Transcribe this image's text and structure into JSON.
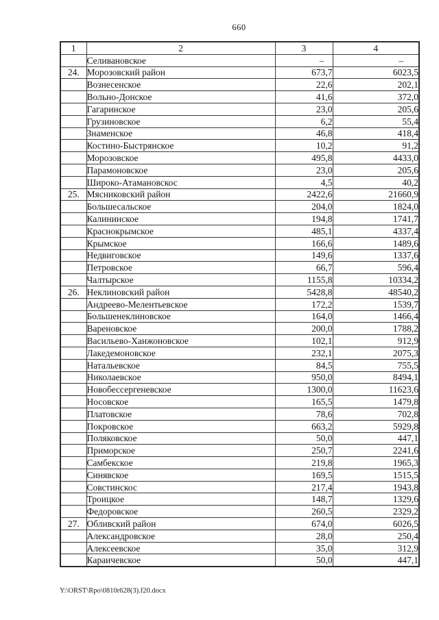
{
  "page": {
    "number": "660",
    "footer_path": "Y:\\ORST\\Rpo\\0810r628(3).f20.docx",
    "text_color": "#161616",
    "border_color": "#3a3a3a",
    "background_color": "#ffffff"
  },
  "table": {
    "headers": [
      "1",
      "2",
      "3",
      "4"
    ],
    "rows": [
      {
        "num": "",
        "name": "Селивановское",
        "v3": "–",
        "v4": "–"
      },
      {
        "num": "24.",
        "name": "Морозовский район",
        "v3": "673,7",
        "v4": "6023,5"
      },
      {
        "num": "",
        "name": "Вознесенское",
        "v3": "22,6",
        "v4": "202,1"
      },
      {
        "num": "",
        "name": "Вольно-Донское",
        "v3": "41,6",
        "v4": "372,0"
      },
      {
        "num": "",
        "name": "Гагаринское",
        "v3": "23,0",
        "v4": "205,6"
      },
      {
        "num": "",
        "name": "Грузиновское",
        "v3": "6,2",
        "v4": "55,4"
      },
      {
        "num": "",
        "name": "Знаменское",
        "v3": "46,8",
        "v4": "418,4"
      },
      {
        "num": "",
        "name": "Костино-Быстрянское",
        "v3": "10,2",
        "v4": "91,2"
      },
      {
        "num": "",
        "name": "Морозовское",
        "v3": "495,8",
        "v4": "4433,0"
      },
      {
        "num": "",
        "name": "Парамоновское",
        "v3": "23,0",
        "v4": "205,6"
      },
      {
        "num": "",
        "name": "Широко-Атамановскос",
        "v3": "4,5",
        "v4": "40,2"
      },
      {
        "num": "25.",
        "name": "Мясниковский район",
        "v3": "2422,6",
        "v4": "21660,9"
      },
      {
        "num": "",
        "name": "Большесальское",
        "v3": "204,0",
        "v4": "1824,0"
      },
      {
        "num": "",
        "name": "Калининское",
        "v3": "194,8",
        "v4": "1741,7"
      },
      {
        "num": "",
        "name": "Краснокрымское",
        "v3": "485,1",
        "v4": "4337,4"
      },
      {
        "num": "",
        "name": "Крымское",
        "v3": "166,6",
        "v4": "1489,6"
      },
      {
        "num": "",
        "name": "Недвиговское",
        "v3": "149,6",
        "v4": "1337,6"
      },
      {
        "num": "",
        "name": "Петровское",
        "v3": "66,7",
        "v4": "596,4"
      },
      {
        "num": "",
        "name": "Чалтырское",
        "v3": "1155,8",
        "v4": "10334,2"
      },
      {
        "num": "26.",
        "name": "Неклиновский район",
        "v3": "5428,8",
        "v4": "48540,2"
      },
      {
        "num": "",
        "name": "Андреево-Мелентьевское",
        "v3": "172,2",
        "v4": "1539,7"
      },
      {
        "num": "",
        "name": "Большенеклиновское",
        "v3": "164,0",
        "v4": "1466,4"
      },
      {
        "num": "",
        "name": "Вареновское",
        "v3": "200,0",
        "v4": "1788,2"
      },
      {
        "num": "",
        "name": "Васильево-Ханжоновское",
        "v3": "102,1",
        "v4": "912,9"
      },
      {
        "num": "",
        "name": "Лакедемоновское",
        "v3": "232,1",
        "v4": "2075,3"
      },
      {
        "num": "",
        "name": "Натальевское",
        "v3": "84,5",
        "v4": "755,5"
      },
      {
        "num": "",
        "name": "Николаевское",
        "v3": "950,0",
        "v4": "8494,1"
      },
      {
        "num": "",
        "name": "Новобессергеневское",
        "v3": "1300,0",
        "v4": "11623,6"
      },
      {
        "num": "",
        "name": "Носовское",
        "v3": "165,5",
        "v4": "1479,8"
      },
      {
        "num": "",
        "name": "Платовское",
        "v3": "78,6",
        "v4": "702,8"
      },
      {
        "num": "",
        "name": "Покровское",
        "v3": "663,2",
        "v4": "5929,8"
      },
      {
        "num": "",
        "name": "Поляковское",
        "v3": "50,0",
        "v4": "447,1"
      },
      {
        "num": "",
        "name": "Приморское",
        "v3": "250,7",
        "v4": "2241,6"
      },
      {
        "num": "",
        "name": "Самбекское",
        "v3": "219,8",
        "v4": "1965,3"
      },
      {
        "num": "",
        "name": "Синявское",
        "v3": "169,5",
        "v4": "1515,5"
      },
      {
        "num": "",
        "name": "Совстинскос",
        "v3": "217,4",
        "v4": "1943,8"
      },
      {
        "num": "",
        "name": "Троицкое",
        "v3": "148,7",
        "v4": "1329,6"
      },
      {
        "num": "",
        "name": "Федоровское",
        "v3": "260,5",
        "v4": "2329,2"
      },
      {
        "num": "27.",
        "name": "Обливский район",
        "v3": "674,0",
        "v4": "6026,5"
      },
      {
        "num": "",
        "name": "Александровское",
        "v3": "28,0",
        "v4": "250,4"
      },
      {
        "num": "",
        "name": "Алексеевское",
        "v3": "35,0",
        "v4": "312,9"
      },
      {
        "num": "",
        "name": "Караичевское",
        "v3": "50,0",
        "v4": "447,1"
      }
    ]
  }
}
